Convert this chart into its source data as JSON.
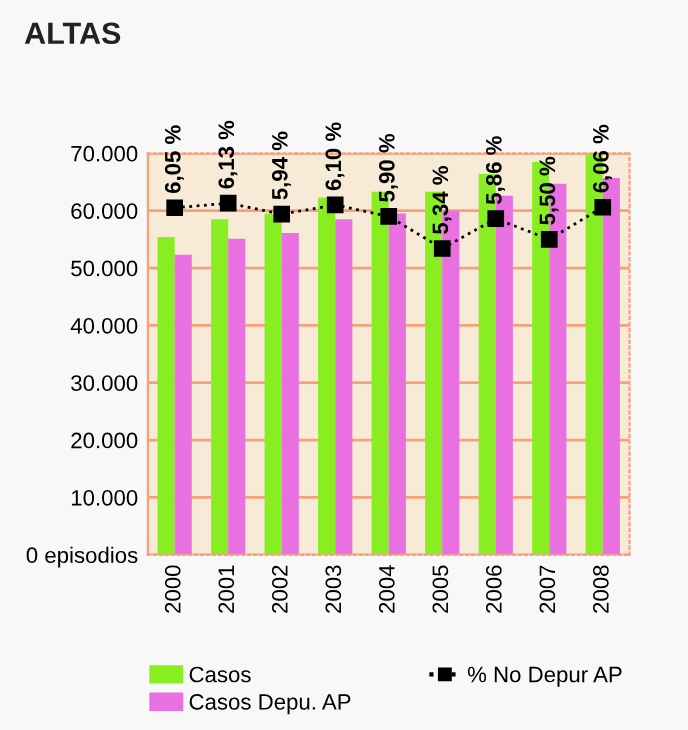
{
  "chart_data": {
    "type": "bar",
    "title": "ALTAS",
    "categories": [
      "2000",
      "2001",
      "2002",
      "2003",
      "2004",
      "2005",
      "2006",
      "2007",
      "2008"
    ],
    "series": [
      {
        "name": "Casos",
        "color": "#88ee22",
        "values": [
          55400,
          58500,
          59500,
          62300,
          63300,
          63300,
          66400,
          68500,
          70000
        ]
      },
      {
        "name": "Casos Depu. AP",
        "color": "#e870e0",
        "values": [
          52300,
          55100,
          56100,
          58500,
          59500,
          60000,
          62600,
          64700,
          65700
        ]
      },
      {
        "name": "% No Depur AP",
        "type": "line",
        "axis": "y2",
        "color": "#000000",
        "marker": "square",
        "line_style": "dotted",
        "values": [
          6.05,
          6.13,
          5.94,
          6.1,
          5.9,
          5.34,
          5.86,
          5.5,
          6.06
        ],
        "value_labels": [
          "6,05 %",
          "6,13 %",
          "5,94 %",
          "6,10 %",
          "5,90 %",
          "5,34 %",
          "5,86 %",
          "5,50 %",
          "6,06 %"
        ]
      }
    ],
    "ylim": [
      0,
      70000
    ],
    "yticks": [
      {
        "value": 0,
        "label": "0 episodios"
      },
      {
        "value": 10000,
        "label": "10.000"
      },
      {
        "value": 20000,
        "label": "20.000"
      },
      {
        "value": 30000,
        "label": "30.000"
      },
      {
        "value": 40000,
        "label": "40.000"
      },
      {
        "value": 50000,
        "label": "50.000"
      },
      {
        "value": 60000,
        "label": "60.000"
      },
      {
        "value": 70000,
        "label": "70.000"
      }
    ],
    "y2lim": [
      0,
      7
    ],
    "grid": "y",
    "legend": "bottom"
  }
}
